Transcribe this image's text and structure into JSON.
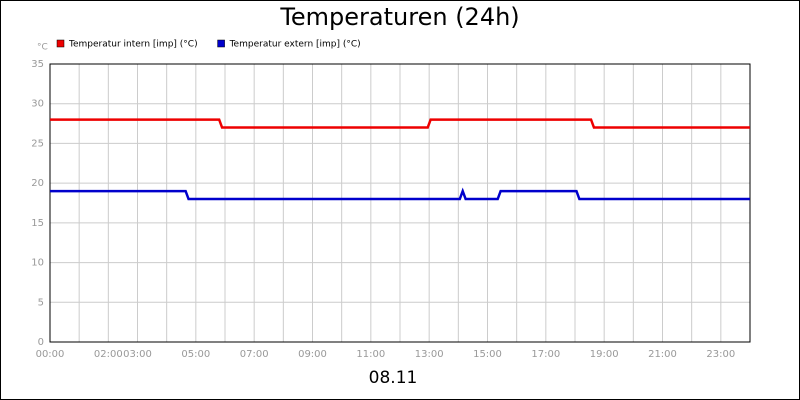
{
  "chart_data": {
    "type": "line",
    "title": "Temperaturen (24h)",
    "y_unit": "°C",
    "x_label": "08.11",
    "xlim": [
      0,
      24
    ],
    "xticks": [
      {
        "value": 0,
        "label": "00:00"
      },
      {
        "value": 2,
        "label": "02:00"
      },
      {
        "value": 3,
        "label": "03:00"
      },
      {
        "value": 5,
        "label": "05:00"
      },
      {
        "value": 7,
        "label": "07:00"
      },
      {
        "value": 9,
        "label": "09:00"
      },
      {
        "value": 11,
        "label": "11:00"
      },
      {
        "value": 13,
        "label": "13:00"
      },
      {
        "value": 15,
        "label": "15:00"
      },
      {
        "value": 17,
        "label": "17:00"
      },
      {
        "value": 19,
        "label": "19:00"
      },
      {
        "value": 21,
        "label": "21:00"
      },
      {
        "value": 23,
        "label": "23:00"
      }
    ],
    "x_minor_ticks": [
      1,
      4,
      6,
      8,
      10,
      12,
      14,
      16,
      18,
      20,
      22,
      24
    ],
    "ylim": [
      0,
      35
    ],
    "yticks": [
      0,
      5,
      10,
      15,
      20,
      25,
      30,
      35
    ],
    "grid": true,
    "series": [
      {
        "name": "Temperatur intern [imp] (°C)",
        "color": "#ee0000",
        "x": [
          0,
          5.8,
          5.9,
          12.95,
          13.05,
          18.55,
          18.65,
          24
        ],
        "values": [
          28,
          28,
          27,
          27,
          28,
          28,
          27,
          27
        ]
      },
      {
        "name": "Temperatur extern [imp] (°C)",
        "color": "#0000cc",
        "x": [
          0,
          4.65,
          4.75,
          14.05,
          14.15,
          14.25,
          15.35,
          15.45,
          18.05,
          18.15,
          24
        ],
        "values": [
          19,
          19,
          18,
          18,
          19,
          18,
          18,
          19,
          19,
          18,
          18
        ]
      }
    ]
  }
}
